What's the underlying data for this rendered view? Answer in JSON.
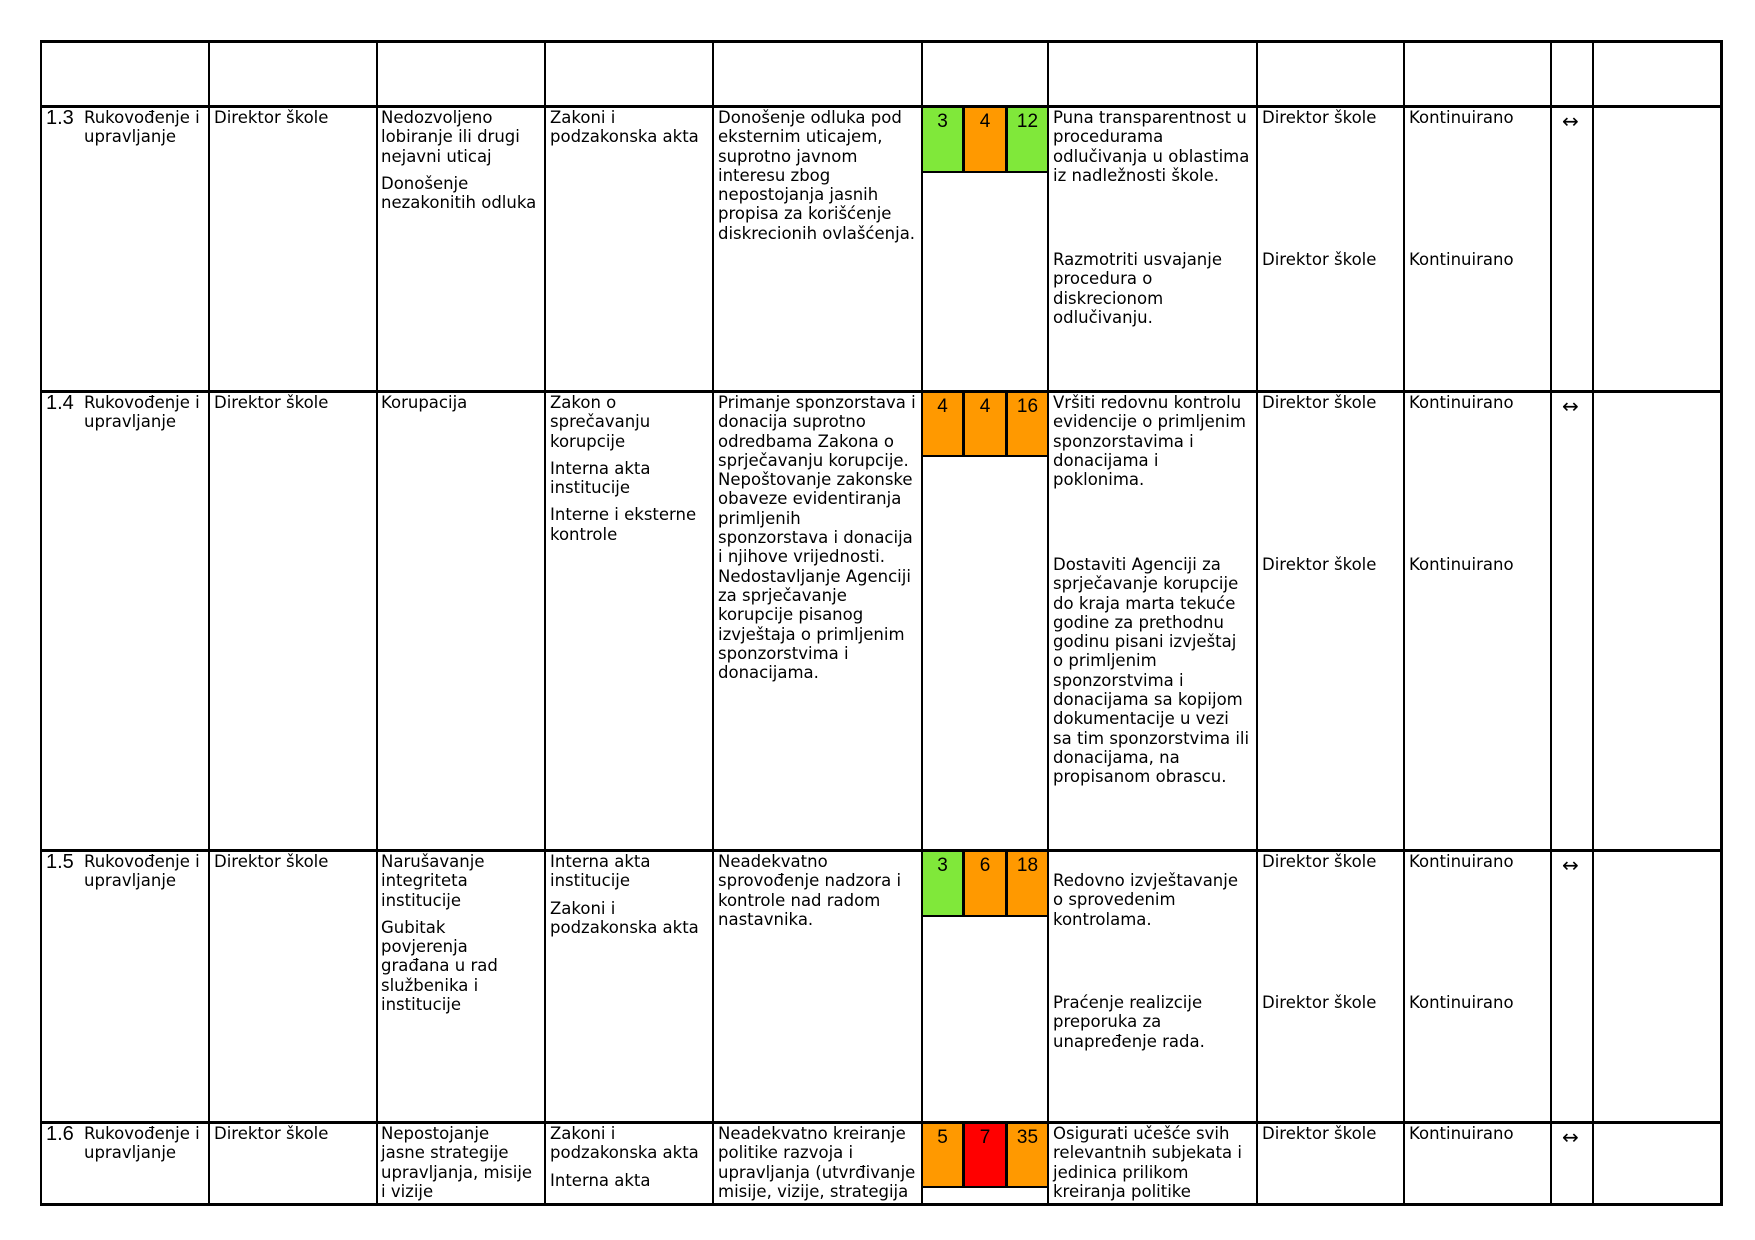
{
  "colors": {
    "green": "#80e83a",
    "orange": "#ff9900",
    "red": "#ff0000",
    "border": "#000000"
  },
  "rows": [
    {
      "id": "1.3",
      "area": "Rukovođenje i upravljanje",
      "responsible": "Direktor škole",
      "risks": [
        "Nedozvoljeno lobiranje ili drugi nejavni uticaj",
        "Donošenje nezakonitih odluka"
      ],
      "basis": [
        "Zakoni i podzakonska akta"
      ],
      "description": "Donošenje odluka pod eksternim uticajem, suprotno javnom interesu zbog nepostojanja jasnih propisa za korišćenje diskrecionih ovlašćenja.",
      "scores": [
        {
          "value": "3",
          "color": "green"
        },
        {
          "value": "4",
          "color": "orange"
        },
        {
          "value": "12",
          "color": "green"
        }
      ],
      "measures": [
        {
          "text": "Puna transparentnost u procedurama odlučivanja u oblastima iz nadležnosti škole.",
          "owner": "Direktor škole",
          "deadline": "Kontinuirano"
        },
        {
          "text": "Razmotriti usvajanje procedura o diskrecionom odlučivanju.",
          "owner": "Direktor škole",
          "deadline": "Kontinuirano"
        }
      ],
      "trend": "↔"
    },
    {
      "id": "1.4",
      "area": "Rukovođenje i upravljanje",
      "responsible": "Direktor škole",
      "risks": [
        "Korupacija"
      ],
      "basis": [
        "Zakon o sprečavanju korupcije",
        "Interna akta institucije",
        "Interne i eksterne kontrole"
      ],
      "description": "Primanje sponzorstava i donacija suprotno odredbama Zakona o sprječavanju korupcije. Nepoštovanje zakonske obaveze evidentiranja primljenih sponzorstava i donacija i njihove vrijednosti. Nedostavljanje Agenciji za sprječavanje korupcije pisanog izvještaja o primljenim sponzorstvima i donacijama.",
      "scores": [
        {
          "value": "4",
          "color": "orange"
        },
        {
          "value": "4",
          "color": "orange"
        },
        {
          "value": "16",
          "color": "orange"
        }
      ],
      "measures": [
        {
          "text": "Vršiti redovnu kontrolu evidencije o primljenim sponzorstavima i donacijama i poklonima.",
          "owner": "Direktor škole",
          "deadline": "Kontinuirano"
        },
        {
          "text": "Dostaviti Agenciji za sprječavanje korupcije do kraja marta tekuće godine za prethodnu godinu pisani izvještaj o primljenim sponzorstvima i donacijama sa kopijom dokumentacije u vezi sa tim sponzorstvima ili donacijama, na propisanom obrascu.",
          "owner": "Direktor škole",
          "deadline": "Kontinuirano"
        }
      ],
      "trend": "↔"
    },
    {
      "id": "1.5",
      "area": "Rukovođenje i upravljanje",
      "responsible": "Direktor škole",
      "risks": [
        "Narušavanje integriteta institucije",
        "Gubitak povjerenja građana u rad službenika i institucije"
      ],
      "basis": [
        "Interna akta institucije",
        "Zakoni i podzakonska akta"
      ],
      "description": "Neadekvatno sprovođenje nadzora i kontrole nad radom nastavnika.",
      "scores": [
        {
          "value": "3",
          "color": "green"
        },
        {
          "value": "6",
          "color": "orange"
        },
        {
          "value": "18",
          "color": "orange"
        }
      ],
      "measures": [
        {
          "text": "Redovno izvještavanje o sprovedenim kontrolama.",
          "owner": "Direktor škole",
          "deadline": "Kontinuirano"
        },
        {
          "text": "Praćenje realizcije preporuka za unapređenje rada.",
          "owner": "Direktor škole",
          "deadline": "Kontinuirano"
        }
      ],
      "trend": "↔"
    },
    {
      "id": "1.6",
      "area": "Rukovođenje i upravljanje",
      "responsible": "Direktor škole",
      "risks": [
        "Nepostojanje jasne strategije upravljanja, misije i vizije"
      ],
      "basis": [
        "Zakoni i podzakonska akta",
        "Interna akta"
      ],
      "description": "Neadekvatno kreiranje politike razvoja i upravljanja (utvrđivanje misije, vizije, strategija",
      "scores": [
        {
          "value": "5",
          "color": "orange"
        },
        {
          "value": "7",
          "color": "red"
        },
        {
          "value": "35",
          "color": "orange"
        }
      ],
      "measures": [
        {
          "text": "Osigurati učešće svih relevantnih subjekata i jedinica prilikom kreiranja politike",
          "owner": "Direktor škole",
          "deadline": "Kontinuirano"
        }
      ],
      "trend": "↔"
    }
  ]
}
